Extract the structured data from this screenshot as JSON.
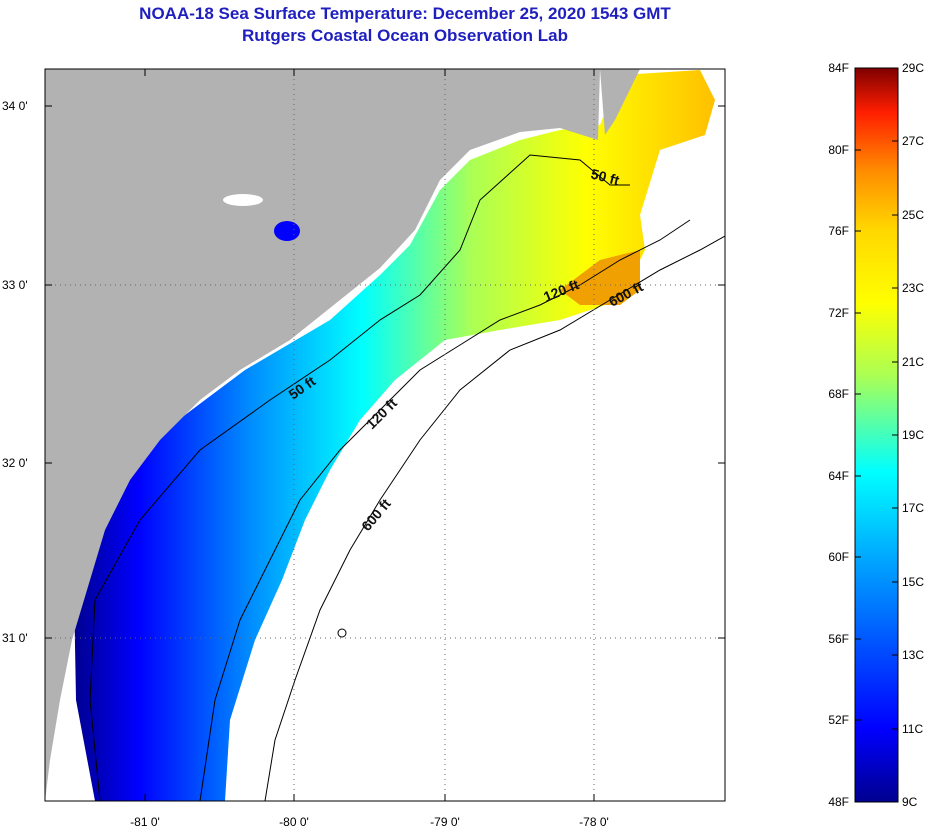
{
  "header": {
    "title": "NOAA-18 Sea Surface Temperature:  December 25, 2020 1543 GMT",
    "subtitle": "Rutgers Coastal Ocean Observation Lab"
  },
  "map": {
    "lat_labels": [
      {
        "value": 34,
        "text": "34 0'"
      },
      {
        "value": 33,
        "text": "33 0'"
      },
      {
        "value": 32,
        "text": "32 0'"
      },
      {
        "value": 31,
        "text": "31 0'"
      }
    ],
    "lon_labels": [
      {
        "value": -81,
        "text": "-81 0'"
      },
      {
        "value": -80,
        "text": "-80 0'"
      },
      {
        "value": -79,
        "text": "-79 0'"
      },
      {
        "value": -78,
        "text": "-78 0'"
      }
    ],
    "contour_labels": [
      "50 ft",
      "120 ft",
      "600 ft",
      "50 ft",
      "120 ft",
      "600 ft"
    ]
  },
  "colorbar": {
    "fahrenheit": [
      "84F",
      "80F",
      "76F",
      "72F",
      "68F",
      "64F",
      "60F",
      "56F",
      "52F",
      "48F"
    ],
    "celsius": [
      "29C",
      "27C",
      "25C",
      "23C",
      "21C",
      "19C",
      "17C",
      "15C",
      "13C",
      "11C",
      "9C"
    ],
    "colors": [
      "#7f0000",
      "#ff1e00",
      "#ff8c00",
      "#ffd700",
      "#ffff00",
      "#aaff55",
      "#00ffff",
      "#0090ff",
      "#0000ff",
      "#00008f"
    ]
  }
}
